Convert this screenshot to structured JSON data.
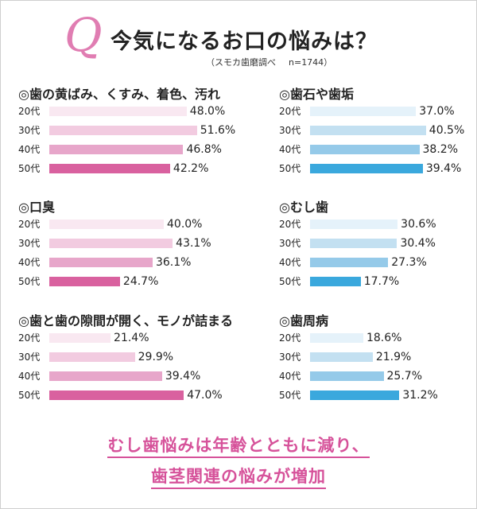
{
  "header": {
    "q_mark": "Q",
    "title": "今気になるお口の悩みは？",
    "source": "（スモカ歯磨調べ",
    "sample": "n=1744）"
  },
  "chart_data": [
    {
      "type": "bar",
      "title": "◎歯の黄ばみ、くすみ、着色、汚れ",
      "categories": [
        "20代",
        "30代",
        "40代",
        "50代"
      ],
      "values": [
        48.0,
        51.6,
        46.8,
        42.2
      ],
      "value_labels": [
        "48.0%",
        "51.6%",
        "46.8%",
        "42.2%"
      ],
      "colors": [
        "#f9e8f1",
        "#f2cbe0",
        "#e7a6ca",
        "#d9619f"
      ]
    },
    {
      "type": "bar",
      "title": "◎歯石や歯垢",
      "categories": [
        "20代",
        "30代",
        "40代",
        "50代"
      ],
      "values": [
        37.0,
        40.5,
        38.2,
        39.4
      ],
      "value_labels": [
        "37.0%",
        "40.5%",
        "38.2%",
        "39.4%"
      ],
      "colors": [
        "#e5f2fa",
        "#c3e0f1",
        "#95cae9",
        "#3aa8dd"
      ]
    },
    {
      "type": "bar",
      "title": "◎口臭",
      "categories": [
        "20代",
        "30代",
        "40代",
        "50代"
      ],
      "values": [
        40.0,
        43.1,
        36.1,
        24.7
      ],
      "value_labels": [
        "40.0%",
        "43.1%",
        "36.1%",
        "24.7%"
      ],
      "colors": [
        "#f9e8f1",
        "#f2cbe0",
        "#e7a6ca",
        "#d9619f"
      ]
    },
    {
      "type": "bar",
      "title": "◎むし歯",
      "categories": [
        "20代",
        "30代",
        "40代",
        "50代"
      ],
      "values": [
        30.6,
        30.4,
        27.3,
        17.7
      ],
      "value_labels": [
        "30.6%",
        "30.4%",
        "27.3%",
        "17.7%"
      ],
      "colors": [
        "#e5f2fa",
        "#c3e0f1",
        "#95cae9",
        "#3aa8dd"
      ]
    },
    {
      "type": "bar",
      "title": "◎歯と歯の隙間が開く、モノが詰まる",
      "categories": [
        "20代",
        "30代",
        "40代",
        "50代"
      ],
      "values": [
        21.4,
        29.9,
        39.4,
        47.0
      ],
      "value_labels": [
        "21.4%",
        "29.9%",
        "39.4%",
        "47.0%"
      ],
      "colors": [
        "#f9e8f1",
        "#f2cbe0",
        "#e7a6ca",
        "#d9619f"
      ]
    },
    {
      "type": "bar",
      "title": "◎歯周病",
      "categories": [
        "20代",
        "30代",
        "40代",
        "50代"
      ],
      "values": [
        18.6,
        21.9,
        25.7,
        31.2
      ],
      "value_labels": [
        "18.6%",
        "21.9%",
        "25.7%",
        "31.2%"
      ],
      "colors": [
        "#e5f2fa",
        "#c3e0f1",
        "#95cae9",
        "#3aa8dd"
      ]
    }
  ],
  "conclusion": {
    "line1": "むし歯悩みは年齢とともに減り、",
    "line2": "歯茎関連の悩みが増加"
  }
}
